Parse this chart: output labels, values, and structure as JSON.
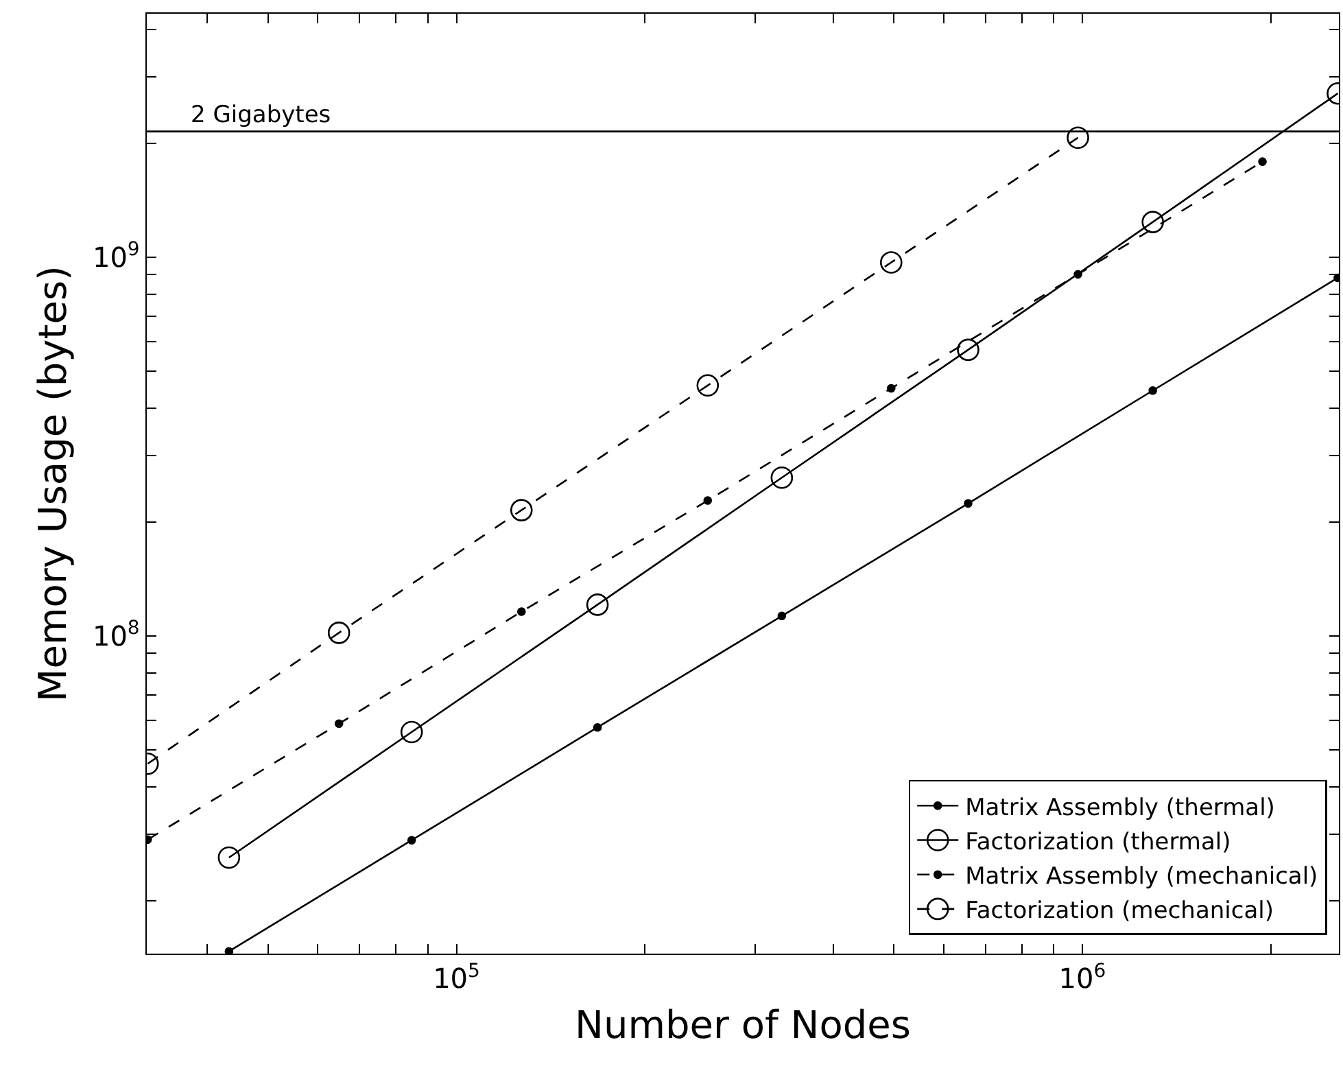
{
  "chart_data": {
    "type": "line",
    "xlabel": "Number of Nodes",
    "ylabel": "Memory Usage (bytes)",
    "log": "xy",
    "grid": false,
    "legend": "bottom right",
    "xlim": [
      32000,
      2570000
    ],
    "ylim": [
      14500000,
      4400000000
    ],
    "xticks": [
      {
        "value": 40000,
        "label": null
      },
      {
        "value": 50000,
        "label": null
      },
      {
        "value": 60000,
        "label": null
      },
      {
        "value": 70000,
        "label": null
      },
      {
        "value": 80000,
        "label": null
      },
      {
        "value": 90000,
        "label": null
      },
      {
        "value": 100000,
        "label": "10$^{5}$"
      },
      {
        "value": 200000,
        "label": null
      },
      {
        "value": 300000,
        "label": null
      },
      {
        "value": 400000,
        "label": null
      },
      {
        "value": 500000,
        "label": null
      },
      {
        "value": 600000,
        "label": null
      },
      {
        "value": 700000,
        "label": null
      },
      {
        "value": 800000,
        "label": null
      },
      {
        "value": 900000,
        "label": null
      },
      {
        "value": 1000000,
        "label": "10$^{6}$"
      },
      {
        "value": 2000000,
        "label": null
      }
    ],
    "yticks": [
      {
        "value": 20000000,
        "label": null
      },
      {
        "value": 30000000,
        "label": null
      },
      {
        "value": 40000000,
        "label": null
      },
      {
        "value": 50000000,
        "label": null
      },
      {
        "value": 60000000,
        "label": null
      },
      {
        "value": 70000000,
        "label": null
      },
      {
        "value": 80000000,
        "label": null
      },
      {
        "value": 90000000,
        "label": null
      },
      {
        "value": 100000000,
        "label": "10$^{8}$"
      },
      {
        "value": 200000000,
        "label": null
      },
      {
        "value": 300000000,
        "label": null
      },
      {
        "value": 400000000,
        "label": null
      },
      {
        "value": 500000000,
        "label": null
      },
      {
        "value": 600000000,
        "label": null
      },
      {
        "value": 700000000,
        "label": null
      },
      {
        "value": 800000000,
        "label": null
      },
      {
        "value": 900000000,
        "label": null
      },
      {
        "value": 1000000000,
        "label": "10$^{9}$"
      },
      {
        "value": 2000000000,
        "label": null
      },
      {
        "value": 3000000000,
        "label": null
      },
      {
        "value": 4000000000,
        "label": null
      }
    ],
    "ref_lines": [
      {
        "axis": "y",
        "value": 2150000000,
        "label": "2 Gigabytes",
        "color": "#000000",
        "line_style": "solid"
      }
    ],
    "series": [
      {
        "name": "Matrix Assembly (thermal)",
        "color": "#000000",
        "marker": "point",
        "line_style": "solid",
        "x": [
          43300,
          84800,
          168000,
          331000,
          657000,
          1296000,
          2560000
        ],
        "values": [
          14700000,
          28900000,
          57400000,
          113000000,
          224000000,
          445000000,
          883000000
        ]
      },
      {
        "name": "Factorization (thermal)",
        "color": "#000000",
        "marker": "circle",
        "line_style": "solid",
        "x": [
          43300,
          84800,
          168000,
          331000,
          657000,
          1296000,
          2560000
        ],
        "values": [
          26000000,
          55800000,
          121000000,
          262000000,
          570000000,
          1240000000,
          2710000000
        ]
      },
      {
        "name": "Matrix Assembly (mechanical)",
        "color": "#000000",
        "marker": "point",
        "line_style": "dashed",
        "x": [
          32100,
          64900,
          127000,
          252000,
          495000,
          984000,
          1940000
        ],
        "values": [
          29000000,
          58700000,
          116000000,
          228000000,
          451000000,
          902000000,
          1790000000
        ]
      },
      {
        "name": "Factorization (mechanical)",
        "color": "#000000",
        "marker": "circle",
        "line_style": "dashed",
        "x": [
          32100,
          64900,
          127000,
          252000,
          495000,
          984000
        ],
        "values": [
          46000000,
          102000000,
          215000000,
          459000000,
          970000000,
          2070000000
        ]
      }
    ]
  }
}
